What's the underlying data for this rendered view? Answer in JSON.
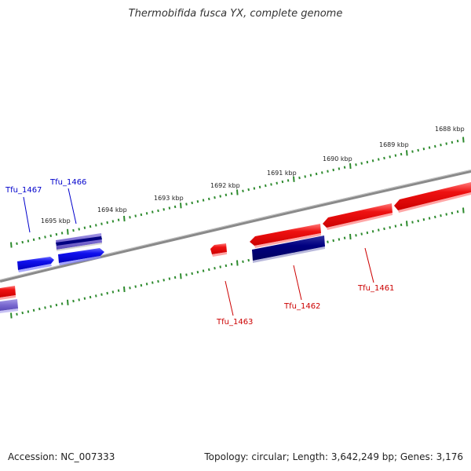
{
  "title": "Thermobifida fusca YX, complete genome",
  "accession_text": "Accession: NC_007333",
  "summary_text": "Topology: circular; Length: 3,642,249 bp; Genes: 3,176",
  "colors": {
    "backbone": "#8a8a8a",
    "tick": "#2e8b2e",
    "forward_label": "#0000cc",
    "reverse_label": "#cc0000",
    "gene_red": "#ee1111",
    "gene_blue": "#1010ee",
    "gene_navy": "#000080",
    "gene_lavender": "#7a6ad0"
  },
  "scale_labels": [
    "1688 kbp",
    "1689 kbp",
    "1690 kbp",
    "1691 kbp",
    "1692 kbp",
    "1693 kbp",
    "1694 kbp",
    "1695 kbp"
  ],
  "gene_labels": {
    "tfu_1467": "Tfu_1467",
    "tfu_1466": "Tfu_1466",
    "tfu_1463": "Tfu_1463",
    "tfu_1462": "Tfu_1462",
    "tfu_1461": "Tfu_1461"
  }
}
